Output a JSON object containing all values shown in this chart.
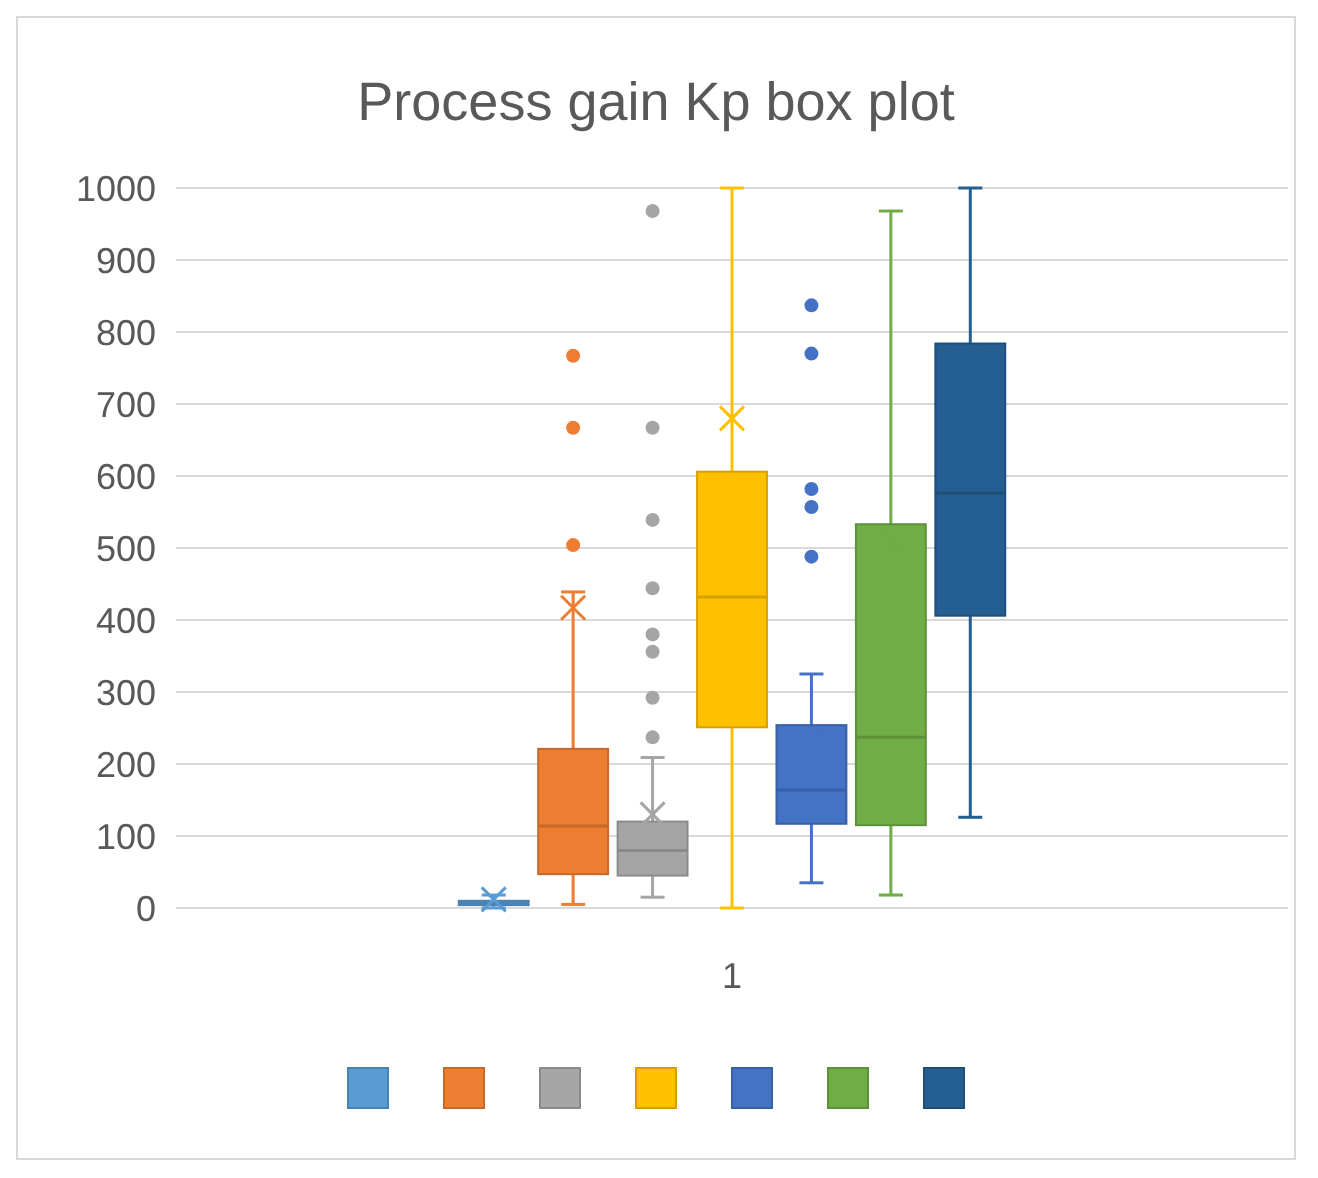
{
  "chart_data": {
    "type": "box",
    "title": "Process gain Kp box plot",
    "categories": [
      "1"
    ],
    "ylim": [
      0,
      1000
    ],
    "yticks": [
      0,
      100,
      200,
      300,
      400,
      500,
      600,
      700,
      800,
      900,
      1000
    ],
    "grid": "y",
    "series": [
      {
        "color": "#5b9bd5",
        "boxes": [
          {
            "low": 0,
            "q1": 4,
            "median": 7,
            "q3": 10,
            "high": 18,
            "mean": 12
          }
        ]
      },
      {
        "color": "#ed7d31",
        "boxes": [
          {
            "low": 5,
            "q1": 47,
            "median": 114,
            "q3": 221,
            "high": 439,
            "mean": 417,
            "outliers": [
              504,
              667,
              767
            ]
          }
        ]
      },
      {
        "color": "#a5a5a5",
        "boxes": [
          {
            "low": 15,
            "q1": 45,
            "median": 80,
            "q3": 120,
            "high": 209,
            "mean": 130,
            "outliers": [
              237,
              292,
              356,
              380,
              444,
              539,
              667,
              968
            ]
          }
        ]
      },
      {
        "color": "#ffc000",
        "boxes": [
          {
            "low": 0,
            "q1": 251,
            "median": 432,
            "q3": 606,
            "high": 1000,
            "mean": 680
          }
        ]
      },
      {
        "color": "#4472c4",
        "boxes": [
          {
            "low": 35,
            "q1": 117,
            "median": 164,
            "q3": 254,
            "high": 325,
            "mean": 231,
            "outliers": [
              488,
              557,
              582,
              770,
              837
            ]
          }
        ]
      },
      {
        "color": "#70ad47",
        "boxes": [
          {
            "low": 18,
            "q1": 115,
            "median": 237,
            "q3": 533,
            "high": 968,
            "mean": 508
          }
        ]
      },
      {
        "color": "#255e91",
        "boxes": [
          {
            "low": 126,
            "q1": 406,
            "median": 576,
            "q3": 784,
            "high": 1000,
            "mean": 758
          }
        ]
      }
    ]
  }
}
